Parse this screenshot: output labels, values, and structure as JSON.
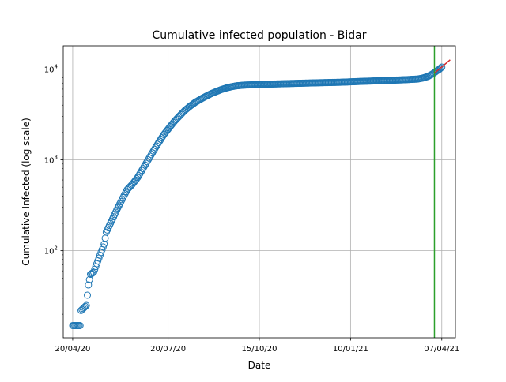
{
  "chart_data": {
    "type": "scatter",
    "title": "Cumulative infected population - Bidar",
    "xlabel": "Date",
    "ylabel": "Cumulative Infected (log scale)",
    "y_scale": "log",
    "x_range": [
      "2020-04-11",
      "2021-04-20"
    ],
    "y_range": [
      11,
      18000
    ],
    "grid": true,
    "x_ticks": [
      {
        "date": "2020-04-20",
        "label": "20/04/20"
      },
      {
        "date": "2020-07-20",
        "label": "20/07/20"
      },
      {
        "date": "2020-10-15",
        "label": "15/10/20"
      },
      {
        "date": "2021-01-10",
        "label": "10/01/21"
      },
      {
        "date": "2021-04-07",
        "label": "07/04/21"
      }
    ],
    "y_ticks": [
      {
        "value": 100,
        "base": "10",
        "exp": "2"
      },
      {
        "value": 1000,
        "base": "10",
        "exp": "3"
      },
      {
        "value": 10000,
        "base": "10",
        "exp": "4"
      }
    ],
    "anchors": [
      [
        "2020-04-20",
        15
      ],
      [
        "2020-04-27",
        15
      ],
      [
        "2020-04-28",
        22
      ],
      [
        "2020-05-03",
        25
      ],
      [
        "2020-05-05",
        42
      ],
      [
        "2020-05-07",
        55
      ],
      [
        "2020-05-10",
        58
      ],
      [
        "2020-05-15",
        83
      ],
      [
        "2020-05-20",
        118
      ],
      [
        "2020-05-22",
        160
      ],
      [
        "2020-05-26",
        200
      ],
      [
        "2020-06-01",
        280
      ],
      [
        "2020-06-06",
        365
      ],
      [
        "2020-06-11",
        470
      ],
      [
        "2020-06-16",
        540
      ],
      [
        "2020-06-21",
        640
      ],
      [
        "2020-06-26",
        800
      ],
      [
        "2020-07-01",
        1000
      ],
      [
        "2020-07-06",
        1250
      ],
      [
        "2020-07-11",
        1550
      ],
      [
        "2020-07-16",
        1900
      ],
      [
        "2020-07-21",
        2250
      ],
      [
        "2020-07-26",
        2650
      ],
      [
        "2020-07-31",
        3050
      ],
      [
        "2020-08-05",
        3500
      ],
      [
        "2020-08-10",
        3900
      ],
      [
        "2020-08-15",
        4300
      ],
      [
        "2020-08-20",
        4650
      ],
      [
        "2020-08-25",
        5000
      ],
      [
        "2020-08-30",
        5350
      ],
      [
        "2020-09-04",
        5650
      ],
      [
        "2020-09-09",
        5950
      ],
      [
        "2020-09-14",
        6200
      ],
      [
        "2020-09-19",
        6400
      ],
      [
        "2020-09-24",
        6550
      ],
      [
        "2020-10-01",
        6650
      ],
      [
        "2020-10-15",
        6750
      ],
      [
        "2020-11-01",
        6850
      ],
      [
        "2020-11-20",
        6950
      ],
      [
        "2020-12-10",
        7050
      ],
      [
        "2021-01-01",
        7150
      ],
      [
        "2021-01-20",
        7300
      ],
      [
        "2021-02-10",
        7450
      ],
      [
        "2021-03-01",
        7600
      ],
      [
        "2021-03-15",
        7750
      ],
      [
        "2021-03-20",
        7950
      ],
      [
        "2021-03-25",
        8300
      ],
      [
        "2021-03-29",
        8800
      ],
      [
        "2021-04-01",
        9300
      ],
      [
        "2021-04-05",
        10000
      ],
      [
        "2021-04-07",
        10500
      ]
    ],
    "marker": {
      "style": "hollow-circle",
      "color": "#1f77b4"
    },
    "vertical_line": {
      "date": "2021-03-31",
      "color": "#2ca02c"
    },
    "fit_line": {
      "color": "#d62728",
      "points": [
        [
          "2021-03-31",
          9000
        ],
        [
          "2021-04-15",
          12600
        ]
      ]
    }
  }
}
